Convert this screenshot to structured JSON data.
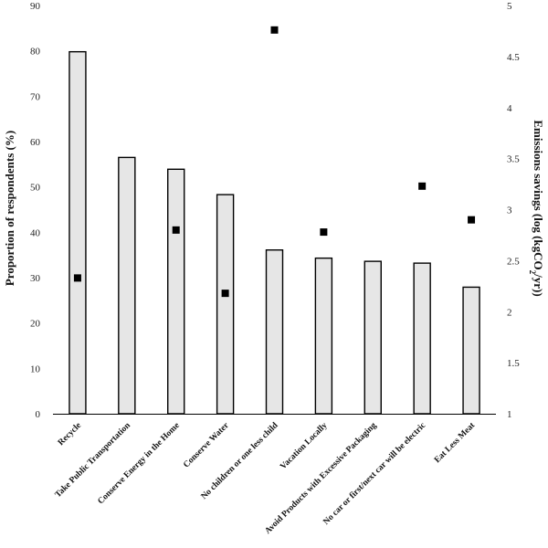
{
  "chart_data": {
    "type": "bar",
    "categories": [
      "Recycle",
      "Take Public Transportation",
      "Conserve Energy in the Home",
      "Conserve Water",
      "No children or one less child",
      "Vacation Locally",
      "Avoid Products with Excessive Packaging",
      "No car or first/next car will be electric",
      "Eat Less Meat"
    ],
    "series": [
      {
        "values": [
          79.8,
          56.5,
          53.9,
          48.3,
          36.1,
          34.3,
          33.6,
          33.2,
          27.9
        ],
        "axis": "left",
        "mark": "bar"
      },
      {
        "values": [
          2.33,
          null,
          2.8,
          2.18,
          4.76,
          2.78,
          null,
          3.23,
          2.9
        ],
        "axis": "right",
        "mark": "square"
      }
    ],
    "ylabel": "Proportion of respondents (%)",
    "y2label_parts": [
      "Emissions savings (log (kgCO",
      "2",
      "/yr))"
    ],
    "ylim": [
      0,
      90
    ],
    "y2lim": [
      1,
      5
    ],
    "yticks": [
      0,
      10,
      20,
      30,
      40,
      50,
      60,
      70,
      80,
      90
    ],
    "y2ticks": [
      "1",
      "1.5",
      "2",
      "2.5",
      "3",
      "3.5",
      "4",
      "4.5",
      "5"
    ],
    "grid": false,
    "legend": "none",
    "colors": {
      "bar_fill": "#e6e6e6",
      "bar_stroke": "#000000",
      "marker": "#000000"
    }
  }
}
